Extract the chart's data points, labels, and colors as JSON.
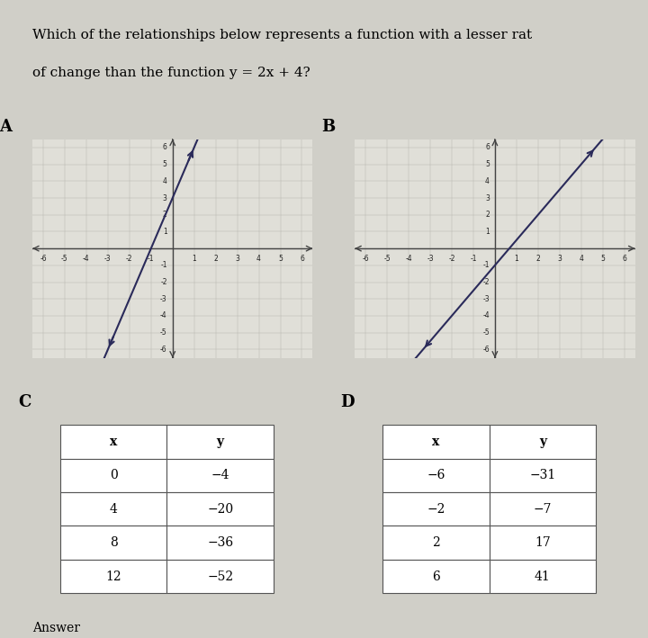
{
  "title_line1": "Which of the relationships below represents a function with a lesser rat",
  "title_line2": "of change than the function y = 2x + 4?",
  "bg_color": "#d0cfc8",
  "panel_bg": "#e8e8e2",
  "graph_A_slope": 3,
  "graph_A_intercept": 3,
  "graph_B_slope": 1.5,
  "graph_B_intercept": -1,
  "table_C": {
    "x": [
      0,
      4,
      8,
      12
    ],
    "y": [
      -4,
      -20,
      -36,
      -52
    ]
  },
  "table_D": {
    "x": [
      -6,
      -2,
      2,
      6
    ],
    "y": [
      -31,
      -7,
      17,
      41
    ]
  },
  "axis_range": 6,
  "label_A": "A",
  "label_B": "B",
  "label_C": "C",
  "label_D": "D"
}
